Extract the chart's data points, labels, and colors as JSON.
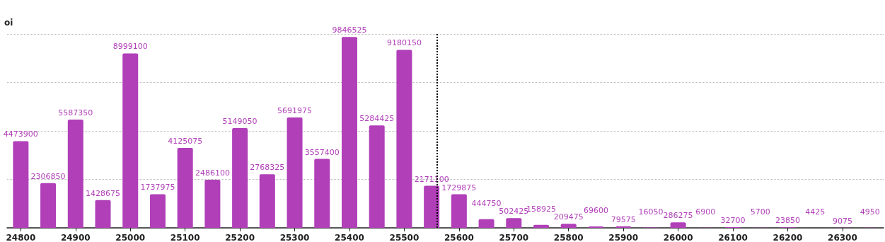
{
  "chart_data": {
    "type": "bar",
    "ylabel": "oi",
    "x": [
      24800,
      24850,
      24900,
      24950,
      25000,
      25050,
      25100,
      25150,
      25200,
      25250,
      25300,
      25350,
      25400,
      25450,
      25500,
      25550,
      25600,
      25650,
      25700,
      25750,
      25800,
      25850,
      25900,
      25950,
      26000,
      26050,
      26100,
      26150,
      26200,
      26250,
      26300,
      26350
    ],
    "values": [
      4473900,
      2306850,
      5587350,
      1428675,
      8999100,
      1737975,
      4125075,
      2486100,
      5149050,
      2768325,
      5691975,
      3557400,
      9846525,
      5284425,
      9180150,
      2171100,
      1729875,
      444750,
      502425,
      158925,
      209475,
      69600,
      79575,
      16050,
      286275,
      6900,
      32700,
      5700,
      23850,
      4425,
      9075,
      4950
    ],
    "color": "#b03fb8",
    "data_labels": true,
    "xlim": [
      24775,
      26375
    ],
    "xticks": [
      24800,
      24900,
      25000,
      25100,
      25200,
      25300,
      25400,
      25500,
      25600,
      25700,
      25800,
      25900,
      26000,
      26100,
      26200,
      26300
    ],
    "ylim": [
      0,
      10000000
    ],
    "yticks": [
      {
        "value": 0,
        "label": null
      },
      {
        "value": 2500000,
        "label": null
      },
      {
        "value": 5000000,
        "label": null
      },
      {
        "value": 7500000,
        "label": null
      },
      {
        "value": 10000000,
        "label": null
      }
    ],
    "tick_labels": "x",
    "grid": "y",
    "ref_lines": [
      {
        "axis": "x",
        "value": 25560,
        "label": null,
        "color": "#000000",
        "line_style": "dotted"
      }
    ]
  }
}
